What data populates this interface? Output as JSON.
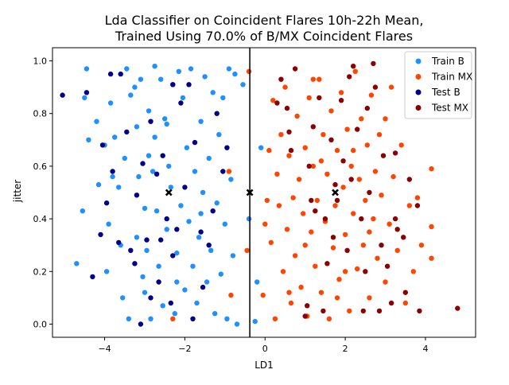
{
  "chart_data": {
    "type": "scatter",
    "title": "Lda Classifier on Coincident Flares 10h-22h Mean,",
    "subtitle": "Trained Using 70.0% of B/MX Coincident Flares",
    "xlabel": "LD1",
    "ylabel": "jitter",
    "xlim": [
      -5.3,
      5.25
    ],
    "ylim": [
      -0.05,
      1.05
    ],
    "xticks": [
      -4,
      -2,
      0,
      2,
      4
    ],
    "xtick_labels": [
      "−4",
      "−2",
      "0",
      "2",
      "4"
    ],
    "yticks": [
      0.0,
      0.2,
      0.4,
      0.6,
      0.8,
      1.0
    ],
    "ytick_labels": [
      "0.0",
      "0.2",
      "0.4",
      "0.6",
      "0.8",
      "1.0"
    ],
    "grid": false,
    "legend_position": "top-right",
    "decision_boundary_x": -0.38,
    "centroids": [
      {
        "x": -2.4,
        "y": 0.5
      },
      {
        "x": -0.38,
        "y": 0.5
      },
      {
        "x": 1.75,
        "y": 0.5
      }
    ],
    "series": [
      {
        "name": "Train B",
        "color": "#1e90ff",
        "points": [
          [
            -4.7,
            0.23
          ],
          [
            -4.55,
            0.43
          ],
          [
            -4.5,
            0.86
          ],
          [
            -4.45,
            0.97
          ],
          [
            -4.4,
            0.7
          ],
          [
            -4.2,
            0.77
          ],
          [
            -4.15,
            0.53
          ],
          [
            -4.0,
            0.68
          ],
          [
            -3.95,
            0.2
          ],
          [
            -3.9,
            0.38
          ],
          [
            -3.85,
            0.84
          ],
          [
            -3.75,
            0.71
          ],
          [
            -3.65,
            0.52
          ],
          [
            -3.55,
            0.1
          ],
          [
            -3.5,
            0.63
          ],
          [
            -3.45,
            0.97
          ],
          [
            -3.4,
            0.02
          ],
          [
            -3.35,
            0.87
          ],
          [
            -3.25,
            0.9
          ],
          [
            -3.2,
            0.75
          ],
          [
            -3.2,
            0.33
          ],
          [
            -3.15,
            0.56
          ],
          [
            -3.1,
            0.93
          ],
          [
            -3.05,
            0.18
          ],
          [
            -3.0,
            0.44
          ],
          [
            -3.0,
            0.12
          ],
          [
            -2.95,
            0.28
          ],
          [
            -2.9,
            0.81
          ],
          [
            -2.85,
            0.02
          ],
          [
            -2.8,
            0.58
          ],
          [
            -2.75,
            0.98
          ],
          [
            -2.75,
            0.71
          ],
          [
            -2.7,
            0.43
          ],
          [
            -2.65,
            0.22
          ],
          [
            -2.6,
            0.93
          ],
          [
            -2.55,
            0.07
          ],
          [
            -2.5,
            0.78
          ],
          [
            -2.45,
            0.36
          ],
          [
            -2.4,
            0.6
          ],
          [
            -2.35,
            0.52
          ],
          [
            -2.3,
            0.91
          ],
          [
            -2.25,
            0.04
          ],
          [
            -2.2,
            0.27
          ],
          [
            -2.15,
            0.96
          ],
          [
            -2.1,
            0.45
          ],
          [
            -2.05,
            0.86
          ],
          [
            -2.0,
            0.13
          ],
          [
            -1.95,
            0.67
          ],
          [
            -1.9,
            0.39
          ],
          [
            -1.85,
            0.97
          ],
          [
            -1.8,
            0.22
          ],
          [
            -1.75,
            0.58
          ],
          [
            -1.7,
            0.08
          ],
          [
            -1.65,
            0.33
          ],
          [
            -1.6,
            0.77
          ],
          [
            -1.55,
            0.5
          ],
          [
            -1.5,
            0.94
          ],
          [
            -1.45,
            0.16
          ],
          [
            -1.4,
            0.63
          ],
          [
            -1.35,
            0.28
          ],
          [
            -1.3,
            0.88
          ],
          [
            -1.25,
            0.04
          ],
          [
            -1.2,
            0.46
          ],
          [
            -1.15,
            0.72
          ],
          [
            -1.1,
            0.19
          ],
          [
            -1.05,
            0.86
          ],
          [
            -1.0,
            0.38
          ],
          [
            -0.95,
            0.02
          ],
          [
            -0.9,
            0.97
          ],
          [
            -0.85,
            0.55
          ],
          [
            -0.8,
            0.26
          ],
          [
            -0.75,
            0.95
          ],
          [
            -0.7,
            0.0
          ],
          [
            -0.55,
            0.91
          ],
          [
            -0.4,
            0.4
          ],
          [
            -0.25,
            0.01
          ],
          [
            -0.2,
            0.16
          ],
          [
            -0.1,
            0.67
          ],
          [
            -3.6,
            0.3
          ],
          [
            -2.9,
            0.64
          ],
          [
            -2.2,
            0.16
          ],
          [
            -1.6,
            0.42
          ],
          [
            -3.8,
            0.56
          ],
          [
            -2.45,
            0.76
          ]
        ]
      },
      {
        "name": "Train MX",
        "color": "#ff4500",
        "points": [
          [
            -2.3,
            0.02
          ],
          [
            -0.85,
            0.11
          ],
          [
            -0.9,
            0.58
          ],
          [
            -0.45,
            0.28
          ],
          [
            -0.4,
            0.96
          ],
          [
            -0.05,
            0.11
          ],
          [
            0.0,
            0.38
          ],
          [
            0.05,
            0.47
          ],
          [
            0.1,
            0.66
          ],
          [
            0.15,
            0.31
          ],
          [
            0.2,
            0.85
          ],
          [
            0.25,
            0.02
          ],
          [
            0.3,
            0.57
          ],
          [
            0.35,
            0.45
          ],
          [
            0.4,
            0.72
          ],
          [
            0.45,
            0.2
          ],
          [
            0.5,
            0.9
          ],
          [
            0.55,
            0.36
          ],
          [
            0.6,
            0.64
          ],
          [
            0.65,
            0.08
          ],
          [
            0.7,
            0.48
          ],
          [
            0.75,
            0.26
          ],
          [
            0.8,
            0.79
          ],
          [
            0.85,
            0.55
          ],
          [
            0.9,
            0.14
          ],
          [
            0.95,
            0.42
          ],
          [
            1.0,
            0.67
          ],
          [
            1.05,
            0.03
          ],
          [
            1.1,
            0.86
          ],
          [
            1.15,
            0.35
          ],
          [
            1.2,
            0.6
          ],
          [
            1.25,
            0.22
          ],
          [
            1.3,
            0.47
          ],
          [
            1.35,
            0.93
          ],
          [
            1.4,
            0.12
          ],
          [
            1.45,
            0.72
          ],
          [
            1.5,
            0.39
          ],
          [
            1.55,
            0.57
          ],
          [
            1.6,
            0.02
          ],
          [
            1.65,
            0.81
          ],
          [
            1.7,
            0.29
          ],
          [
            1.75,
            0.45
          ],
          [
            1.8,
            0.66
          ],
          [
            1.85,
            0.17
          ],
          [
            1.9,
            0.88
          ],
          [
            1.95,
            0.52
          ],
          [
            2.0,
            0.34
          ],
          [
            2.05,
            0.74
          ],
          [
            2.1,
            0.05
          ],
          [
            2.15,
            0.6
          ],
          [
            2.2,
            0.42
          ],
          [
            2.25,
            0.96
          ],
          [
            2.3,
            0.21
          ],
          [
            2.35,
            0.55
          ],
          [
            2.4,
            0.78
          ],
          [
            2.45,
            0.3
          ],
          [
            2.5,
            0.47
          ],
          [
            2.55,
            0.68
          ],
          [
            2.6,
            0.1
          ],
          [
            2.65,
            0.87
          ],
          [
            2.7,
            0.4
          ],
          [
            2.75,
            0.58
          ],
          [
            2.8,
            0.25
          ],
          [
            2.85,
            0.72
          ],
          [
            2.9,
            0.49
          ],
          [
            3.0,
            0.16
          ],
          [
            3.1,
            0.38
          ],
          [
            3.15,
            0.9
          ],
          [
            3.2,
            0.56
          ],
          [
            3.3,
            0.28
          ],
          [
            3.4,
            0.68
          ],
          [
            3.5,
            0.08
          ],
          [
            3.6,
            0.45
          ],
          [
            3.7,
            0.2
          ],
          [
            3.8,
            0.48
          ],
          [
            3.9,
            0.3
          ],
          [
            4.15,
            0.59
          ],
          [
            4.15,
            0.37
          ],
          [
            4.15,
            0.25
          ],
          [
            0.6,
            0.12
          ],
          [
            1.0,
            0.3
          ],
          [
            1.4,
            0.62
          ],
          [
            1.8,
            0.1
          ],
          [
            2.2,
            0.66
          ],
          [
            2.6,
            0.35
          ],
          [
            3.0,
            0.78
          ],
          [
            1.2,
            0.93
          ],
          [
            2.0,
            0.2
          ]
        ]
      },
      {
        "name": "Test B",
        "color": "#00008b",
        "points": [
          [
            -5.05,
            0.87
          ],
          [
            -4.45,
            0.88
          ],
          [
            -4.1,
            0.34
          ],
          [
            -4.05,
            0.68
          ],
          [
            -3.95,
            0.46
          ],
          [
            -3.85,
            0.95
          ],
          [
            -3.8,
            0.58
          ],
          [
            -3.65,
            0.31
          ],
          [
            -3.6,
            0.95
          ],
          [
            -3.45,
            0.73
          ],
          [
            -3.35,
            0.28
          ],
          [
            -3.25,
            0.23
          ],
          [
            -3.2,
            0.49
          ],
          [
            -3.1,
            0.0
          ],
          [
            -3.05,
            0.61
          ],
          [
            -2.95,
            0.32
          ],
          [
            -2.85,
            0.77
          ],
          [
            -2.7,
            0.57
          ],
          [
            -2.65,
            0.16
          ],
          [
            -2.6,
            0.32
          ],
          [
            -2.55,
            0.64
          ],
          [
            -2.45,
            0.4
          ],
          [
            -2.35,
            0.08
          ],
          [
            -2.3,
            0.91
          ],
          [
            -2.2,
            0.36
          ],
          [
            -2.1,
            0.84
          ],
          [
            -2.0,
            0.52
          ],
          [
            -1.9,
            0.91
          ],
          [
            -1.8,
            0.02
          ],
          [
            -1.75,
            0.69
          ],
          [
            -1.6,
            0.35
          ],
          [
            -1.55,
            0.14
          ],
          [
            -1.4,
            0.3
          ],
          [
            -1.3,
            0.43
          ],
          [
            -1.2,
            0.8
          ],
          [
            -1.05,
            0.58
          ],
          [
            -0.95,
            0.67
          ],
          [
            -4.3,
            0.18
          ],
          [
            -2.85,
            0.1
          ],
          [
            -2.3,
            0.26
          ]
        ]
      },
      {
        "name": "Test MX",
        "color": "#8b0000",
        "points": [
          [
            0.3,
            0.84
          ],
          [
            0.4,
            0.93
          ],
          [
            0.55,
            0.82
          ],
          [
            0.6,
            0.73
          ],
          [
            0.65,
            0.66
          ],
          [
            0.75,
            0.97
          ],
          [
            1.0,
            0.03
          ],
          [
            1.05,
            0.07
          ],
          [
            1.1,
            0.6
          ],
          [
            1.15,
            0.47
          ],
          [
            1.25,
            0.43
          ],
          [
            1.35,
            0.86
          ],
          [
            1.45,
            0.05
          ],
          [
            1.5,
            0.4
          ],
          [
            1.55,
            0.23
          ],
          [
            1.65,
            0.7
          ],
          [
            1.7,
            0.33
          ],
          [
            1.75,
            0.53
          ],
          [
            1.8,
            0.47
          ],
          [
            1.9,
            0.85
          ],
          [
            1.95,
            0.62
          ],
          [
            2.05,
            0.28
          ],
          [
            2.1,
            0.94
          ],
          [
            2.15,
            0.55
          ],
          [
            2.2,
            0.98
          ],
          [
            2.3,
            0.74
          ],
          [
            2.4,
            0.4
          ],
          [
            2.5,
            0.2
          ],
          [
            2.55,
            0.82
          ],
          [
            2.6,
            0.5
          ],
          [
            2.7,
            0.99
          ],
          [
            2.75,
            0.9
          ],
          [
            2.85,
            0.05
          ],
          [
            2.95,
            0.64
          ],
          [
            3.05,
            0.22
          ],
          [
            3.15,
            0.08
          ],
          [
            3.25,
            0.65
          ],
          [
            3.3,
            0.36
          ],
          [
            3.45,
            0.33
          ],
          [
            3.5,
            0.12
          ],
          [
            3.8,
            0.45
          ],
          [
            3.85,
            0.05
          ],
          [
            4.8,
            0.06
          ],
          [
            3.6,
            0.55
          ],
          [
            2.9,
            0.3
          ],
          [
            1.2,
            0.75
          ],
          [
            2.45,
            0.05
          ],
          [
            3.25,
            0.4
          ]
        ]
      }
    ]
  }
}
